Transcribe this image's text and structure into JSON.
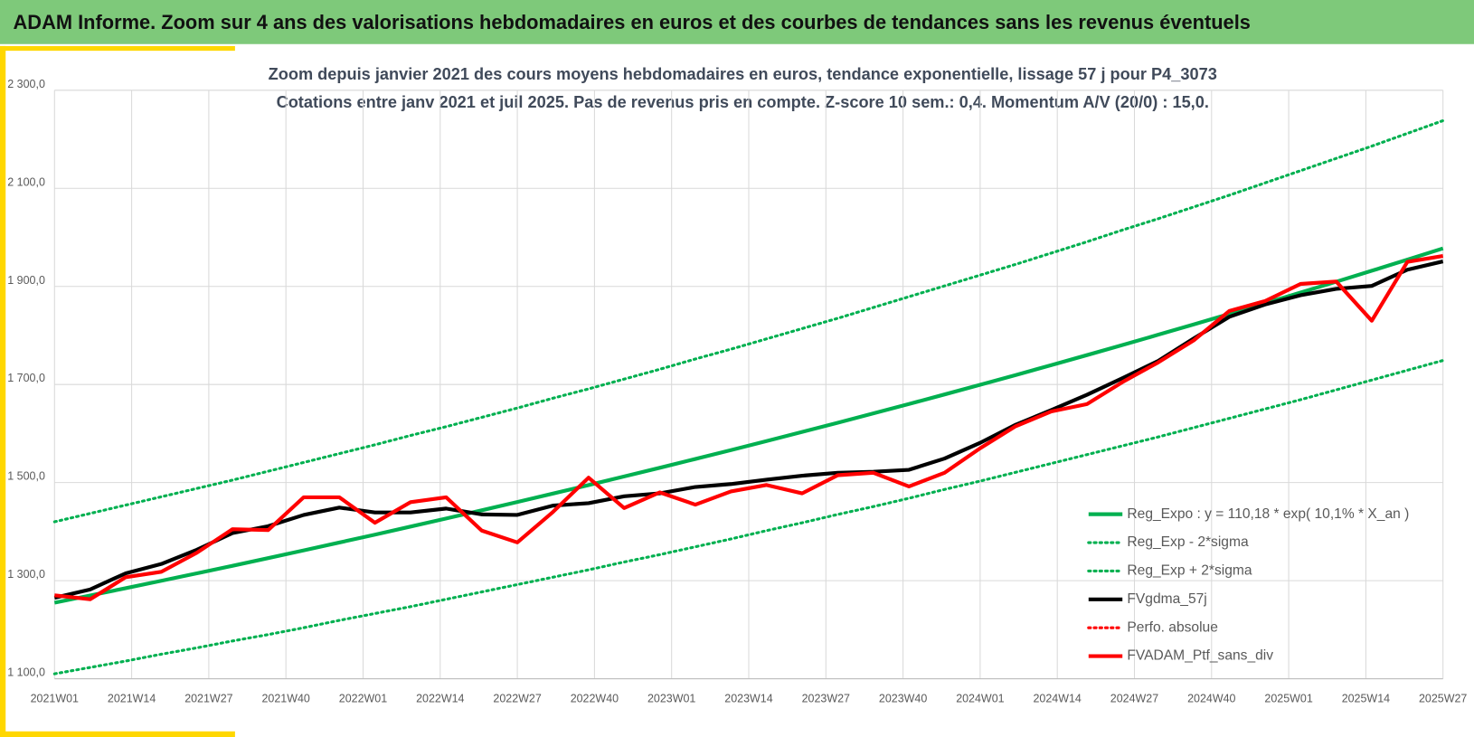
{
  "header": {
    "title": "ADAM Informe. Zoom sur 4 ans des valorisations hebdomadaires en euros et des courbes de tendances sans les revenus éventuels"
  },
  "chart_data": {
    "type": "line",
    "title": "Zoom depuis janvier 2021 des cours moyens hebdomadaires  en euros, tendance exponentielle, lissage 57 j pour P4_3073",
    "subtitle": "Cotations  entre janv 2021 et juil 2025. Pas de revenus pris en compte. Z-score 10 sem.: 0,4. Momentum A/V (20/0) : 15,0.",
    "x": [
      0,
      6,
      12,
      18,
      24,
      30,
      36,
      42,
      48,
      54,
      60,
      66,
      72,
      78,
      84,
      90,
      96,
      102,
      108,
      114,
      120,
      126,
      132,
      138,
      144,
      150,
      156,
      162,
      168,
      174,
      180,
      186,
      192,
      198,
      204,
      210,
      216,
      222,
      228,
      234
    ],
    "xlim": [
      0,
      234
    ],
    "xticks": [
      {
        "value": 0,
        "label": "2021W01"
      },
      {
        "value": 13,
        "label": "2021W14"
      },
      {
        "value": 26,
        "label": "2021W27"
      },
      {
        "value": 39,
        "label": "2021W40"
      },
      {
        "value": 52,
        "label": "2022W01"
      },
      {
        "value": 65,
        "label": "2022W14"
      },
      {
        "value": 78,
        "label": "2022W27"
      },
      {
        "value": 91,
        "label": "2022W40"
      },
      {
        "value": 104,
        "label": "2023W01"
      },
      {
        "value": 117,
        "label": "2023W14"
      },
      {
        "value": 130,
        "label": "2023W27"
      },
      {
        "value": 143,
        "label": "2023W40"
      },
      {
        "value": 156,
        "label": "2024W01"
      },
      {
        "value": 169,
        "label": "2024W14"
      },
      {
        "value": 182,
        "label": "2024W27"
      },
      {
        "value": 195,
        "label": "2024W40"
      },
      {
        "value": 208,
        "label": "2025W01"
      },
      {
        "value": 221,
        "label": "2025W14"
      },
      {
        "value": 234,
        "label": "2025W27"
      }
    ],
    "ylim": [
      1100,
      2300
    ],
    "yticks": [
      {
        "value": 1100,
        "label": "1 100,0"
      },
      {
        "value": 1300,
        "label": "1 300,0"
      },
      {
        "value": 1500,
        "label": "1 500,0"
      },
      {
        "value": 1700,
        "label": "1 700,0"
      },
      {
        "value": 1900,
        "label": "1 900,0"
      },
      {
        "value": 2100,
        "label": "2 100,0"
      },
      {
        "value": 2300,
        "label": "2 300,0"
      }
    ],
    "grid": true,
    "legend": "lower right",
    "series": [
      {
        "name": "Reg_Expo : y = 110,18 * exp( 10,1% *  X_an )",
        "color": "#00b050",
        "style": "solid",
        "values": [
          1255,
          1269.7,
          1284.6,
          1299.7,
          1314.9,
          1330.3,
          1345.9,
          1361.7,
          1377.7,
          1393.8,
          1410.2,
          1426.7,
          1443.4,
          1460.4,
          1477.5,
          1494.8,
          1512.4,
          1530.1,
          1548.1,
          1566.2,
          1584.6,
          1603.2,
          1622,
          1641,
          1660.2,
          1679.7,
          1699.4,
          1719.3,
          1739.5,
          1759.9,
          1780.5,
          1801.4,
          1822.5,
          1843.9,
          1865.5,
          1887.4,
          1909.5,
          1931.9,
          1954.6,
          1977.5
        ]
      },
      {
        "name": "Reg_Exp - 2*sigma",
        "color": "#00b050",
        "style": "dotted",
        "values": [
          1110,
          1123,
          1136,
          1150,
          1163,
          1177,
          1190,
          1204,
          1219,
          1233,
          1247,
          1262,
          1277,
          1292,
          1307,
          1322,
          1338,
          1353,
          1369,
          1385,
          1402,
          1418,
          1435,
          1451,
          1468,
          1486,
          1503,
          1521,
          1539,
          1557,
          1575,
          1593,
          1612,
          1631,
          1650,
          1669,
          1689,
          1709,
          1729,
          1749
        ]
      },
      {
        "name": "Reg_Exp + 2*sigma",
        "color": "#00b050",
        "style": "dotted",
        "values": [
          1420,
          1437,
          1454,
          1471,
          1488,
          1505,
          1523,
          1541,
          1559,
          1577,
          1596,
          1614,
          1633,
          1652,
          1672,
          1691,
          1711,
          1731,
          1752,
          1772,
          1793,
          1814,
          1835,
          1857,
          1879,
          1901,
          1923,
          1945,
          1968,
          1991,
          2015,
          2038,
          2062,
          2086,
          2111,
          2136,
          2161,
          2186,
          2212,
          2238
        ]
      },
      {
        "name": "FVgdma_57j",
        "color": "#000000",
        "style": "solid",
        "values": [
          1265,
          1282,
          1315,
          1334,
          1363,
          1397,
          1411,
          1434,
          1449,
          1439,
          1439,
          1447,
          1435,
          1434,
          1453,
          1458,
          1472,
          1478,
          1491,
          1497,
          1506,
          1514,
          1520,
          1522,
          1526,
          1549,
          1581,
          1618,
          1648,
          1679,
          1713,
          1748,
          1794,
          1838,
          1863,
          1882,
          1895,
          1901,
          1934,
          1951
        ]
      },
      {
        "name": "Perfo. absolue",
        "color": "#ff0000",
        "style": "dotted"
      },
      {
        "name": "FVADAM_Ptf_sans_div",
        "color": "#ff0000",
        "style": "solid",
        "values": [
          1270,
          1262,
          1307,
          1318,
          1357,
          1405,
          1403,
          1470,
          1470,
          1418,
          1460,
          1470,
          1402,
          1378,
          1440,
          1510,
          1448,
          1480,
          1455,
          1482,
          1495,
          1478,
          1515,
          1520,
          1492,
          1520,
          1570,
          1615,
          1645,
          1660,
          1705,
          1745,
          1790,
          1850,
          1870,
          1905,
          1910,
          1830,
          1950,
          1962
        ]
      }
    ]
  }
}
